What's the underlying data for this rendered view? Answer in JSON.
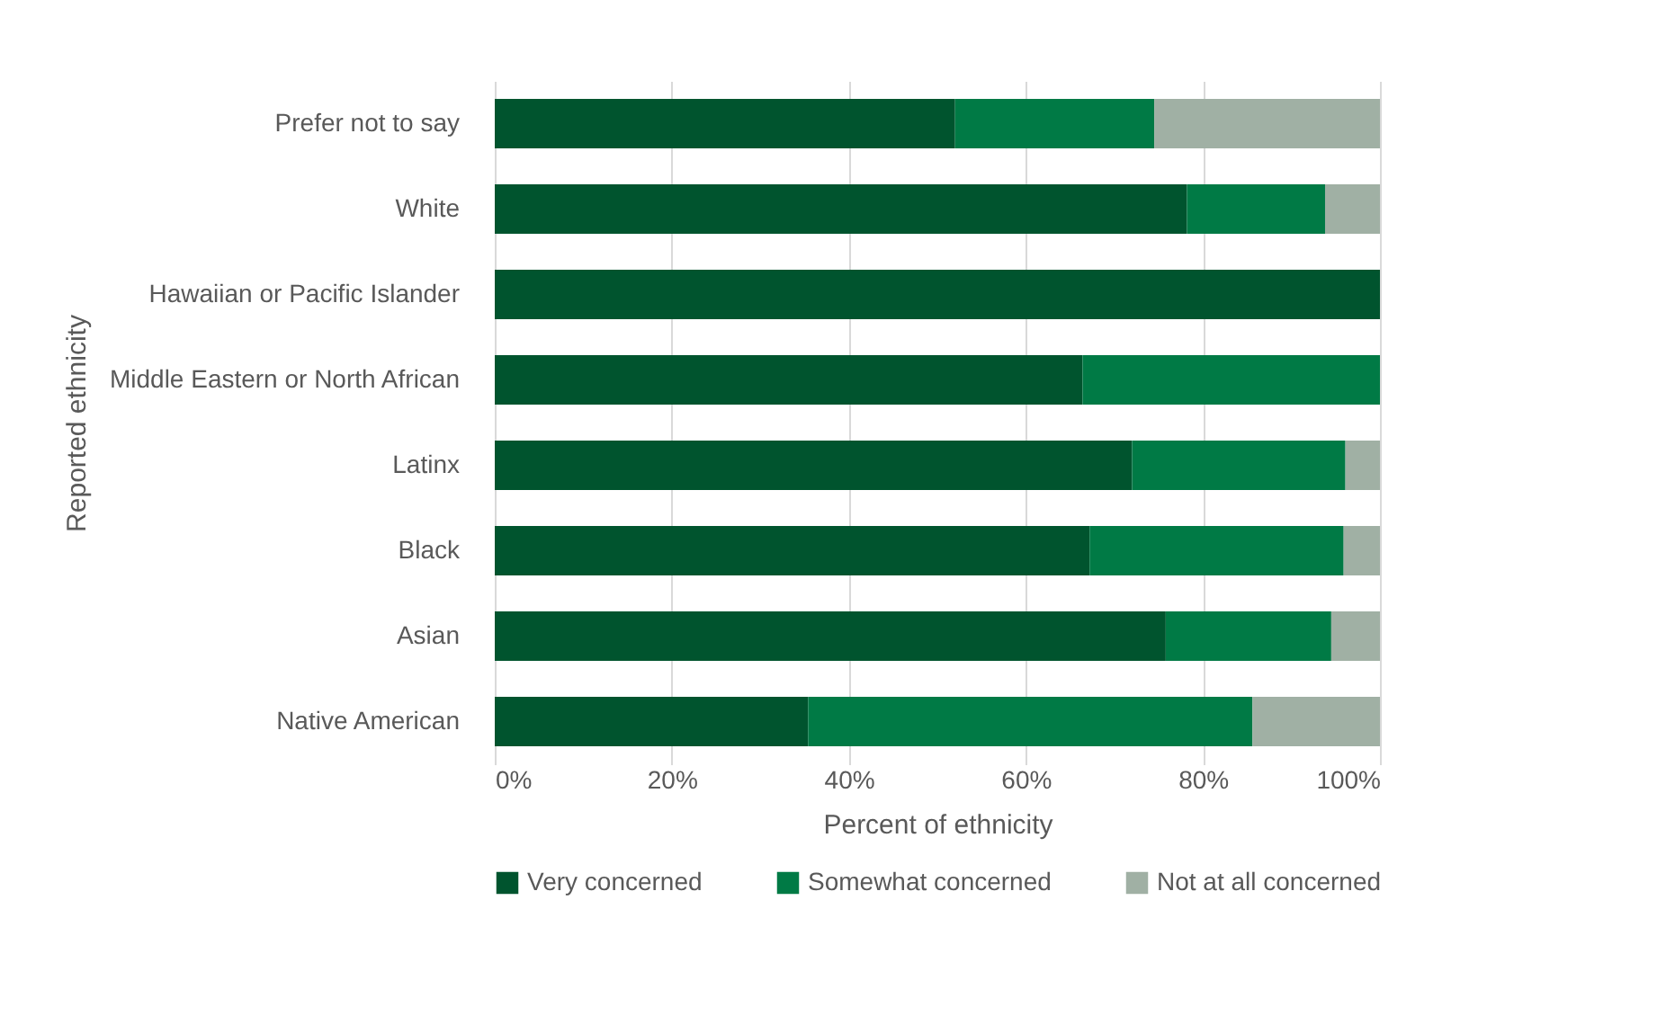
{
  "chart_data": {
    "type": "bar",
    "orientation": "horizontal",
    "stacked": true,
    "xlabel": "Percent of ethnicity",
    "ylabel": "Reported ethnicity",
    "categories": [
      "Prefer not to say",
      "White",
      "Hawaiian or Pacific Islander",
      "Middle Eastern or North African",
      "Latinx",
      "Black",
      "Asian",
      "Native American"
    ],
    "series": [
      {
        "name": "Very concerned",
        "color": "#00542e",
        "values": [
          52.0,
          78.2,
          100,
          66.4,
          72.0,
          67.2,
          75.8,
          35.4
        ]
      },
      {
        "name": "Somewhat concerned",
        "color": "#007a45",
        "values": [
          22.5,
          15.6,
          0,
          33.6,
          24.1,
          28.7,
          18.7,
          50.2
        ]
      },
      {
        "name": "Not at all concerned",
        "color": "#a0b0a4",
        "values": [
          25.5,
          6.2,
          0,
          0,
          3.9,
          4.1,
          5.5,
          14.4
        ]
      }
    ],
    "xlim": [
      0,
      100
    ],
    "xticks": [
      {
        "value": 0,
        "label": "0%"
      },
      {
        "value": 20,
        "label": "20%"
      },
      {
        "value": 40,
        "label": "40%"
      },
      {
        "value": 60,
        "label": "60%"
      },
      {
        "value": 80,
        "label": "80%"
      },
      {
        "value": 100,
        "label": "100%"
      }
    ],
    "grid": "x",
    "legend": "bottom"
  }
}
